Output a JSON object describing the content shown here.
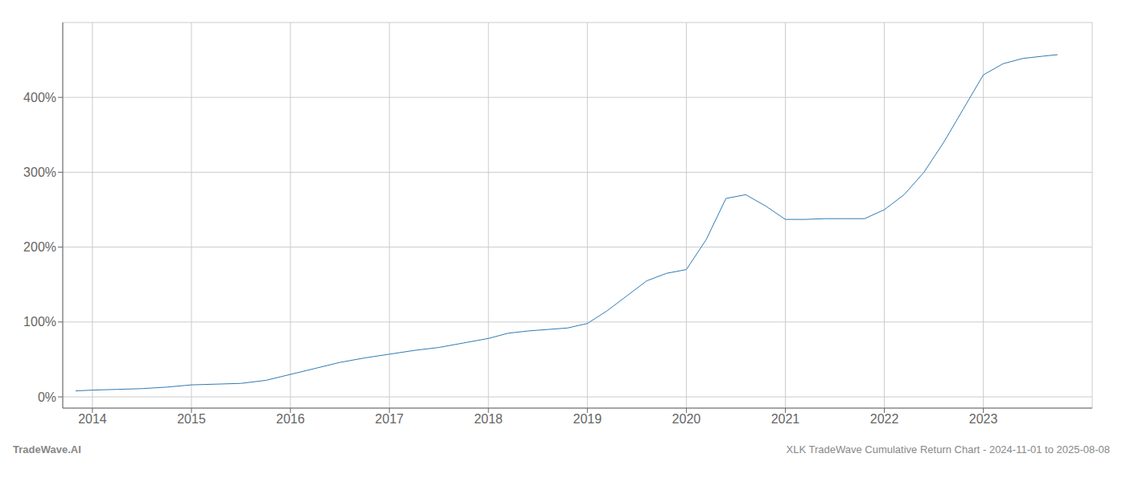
{
  "chart_data": {
    "type": "line",
    "title": "XLK TradeWave Cumulative Return Chart - 2024-11-01 to 2025-08-08",
    "annotations": [
      "TradeWave.AI"
    ],
    "x": [
      2013.83,
      2014.0,
      2014.25,
      2014.5,
      2014.75,
      2015.0,
      2015.25,
      2015.5,
      2015.75,
      2016.0,
      2016.25,
      2016.5,
      2016.75,
      2017.0,
      2017.25,
      2017.5,
      2017.75,
      2018.0,
      2018.2,
      2018.4,
      2018.6,
      2018.8,
      2019.0,
      2019.2,
      2019.4,
      2019.6,
      2019.8,
      2020.0,
      2020.2,
      2020.4,
      2020.6,
      2020.8,
      2021.0,
      2021.2,
      2021.4,
      2021.6,
      2021.8,
      2022.0,
      2022.2,
      2022.4,
      2022.6,
      2022.8,
      2023.0,
      2023.2,
      2023.4,
      2023.6,
      2023.75
    ],
    "values": [
      8,
      9,
      10,
      11,
      13,
      16,
      17,
      18,
      22,
      30,
      38,
      46,
      52,
      57,
      62,
      66,
      72,
      78,
      85,
      88,
      90,
      92,
      98,
      115,
      135,
      155,
      165,
      170,
      210,
      265,
      270,
      255,
      237,
      237,
      238,
      238,
      238,
      250,
      270,
      300,
      340,
      385,
      430,
      445,
      452,
      455,
      457
    ],
    "color": "#2f7bb5",
    "xlim": [
      2013.7,
      2024.1
    ],
    "ylim": [
      -15,
      500
    ],
    "xticks": [
      2014,
      2015,
      2016,
      2017,
      2018,
      2019,
      2020,
      2021,
      2022,
      2023
    ],
    "yticks": [
      {
        "value": 0,
        "label": "0%"
      },
      {
        "value": 100,
        "label": "100%"
      },
      {
        "value": 200,
        "label": "200%"
      },
      {
        "value": 300,
        "label": "300%"
      },
      {
        "value": 400,
        "label": "400%"
      }
    ],
    "grid": true
  }
}
